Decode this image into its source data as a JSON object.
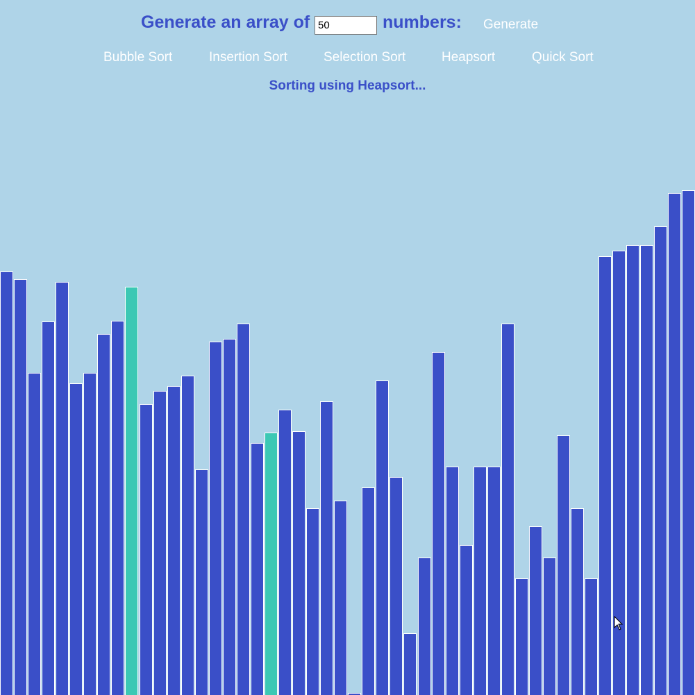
{
  "header": {
    "prefix": "Generate an array of",
    "count_value": "50",
    "suffix": "numbers:",
    "generate_label": "Generate"
  },
  "algorithms": [
    {
      "label": "Bubble Sort"
    },
    {
      "label": "Insertion Sort"
    },
    {
      "label": "Selection Sort"
    },
    {
      "label": "Heapsort"
    },
    {
      "label": "Quick Sort"
    }
  ],
  "status": "Sorting using Heapsort...",
  "colors": {
    "background": "#afd4e8",
    "bar": "#3a4fc8",
    "highlight": "#3cc8b4",
    "text": "#3a4fc8",
    "button_text": "#ffffff"
  },
  "array": {
    "max_value": 1001,
    "highlighted_indices": [
      9,
      19
    ],
    "values": [
      610,
      599,
      464,
      538,
      595,
      449,
      464,
      520,
      539,
      588,
      419,
      438,
      445,
      460,
      325,
      509,
      513,
      535,
      363,
      378,
      411,
      380,
      269,
      423,
      280,
      3,
      299,
      453,
      314,
      89,
      198,
      494,
      329,
      216,
      329,
      329,
      535,
      168,
      243,
      198,
      374,
      269,
      168,
      632,
      640,
      648,
      648,
      675,
      723,
      727
    ]
  }
}
